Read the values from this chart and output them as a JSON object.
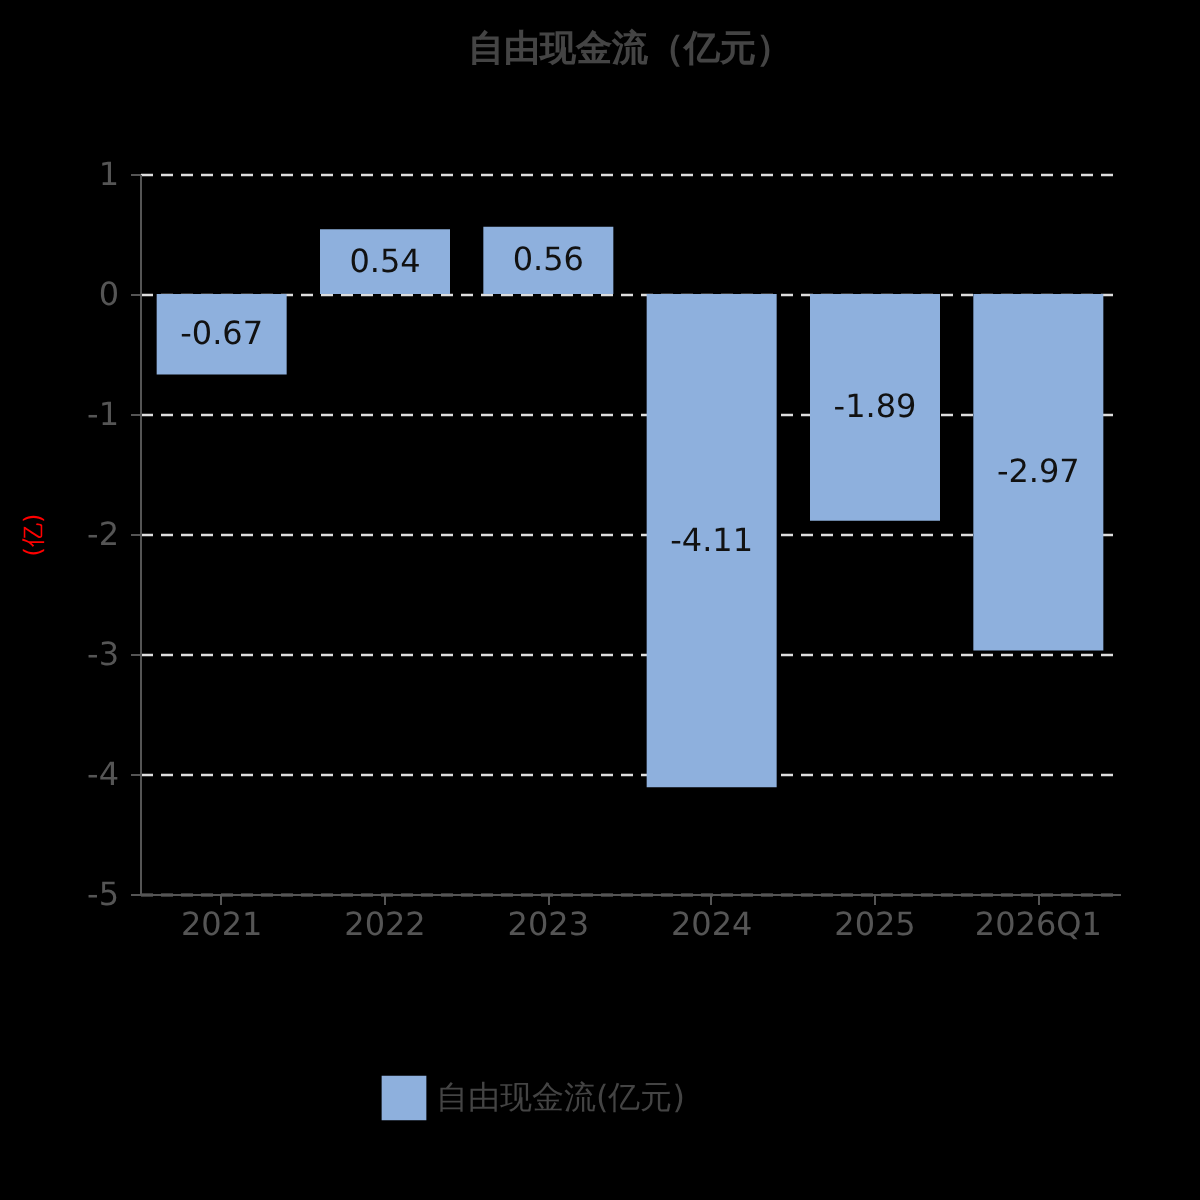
{
  "chart_data": {
    "type": "bar",
    "title": "自由现金流（亿元）",
    "ylabel": "(亿)",
    "categories": [
      "2021",
      "2022",
      "2023",
      "2024",
      "2025",
      "2026Q1"
    ],
    "series": [
      {
        "name": "自由现金流(亿元)",
        "color": "#8eb0dd",
        "values": [
          -0.67,
          0.54,
          0.56,
          -4.11,
          -1.89,
          -2.97
        ]
      }
    ],
    "ylim": [
      -5,
      1
    ],
    "yticks": [
      -5,
      -4,
      -3,
      -2,
      -1,
      0,
      1
    ],
    "grid": "y",
    "legend": "bottom",
    "data_labels": true
  }
}
